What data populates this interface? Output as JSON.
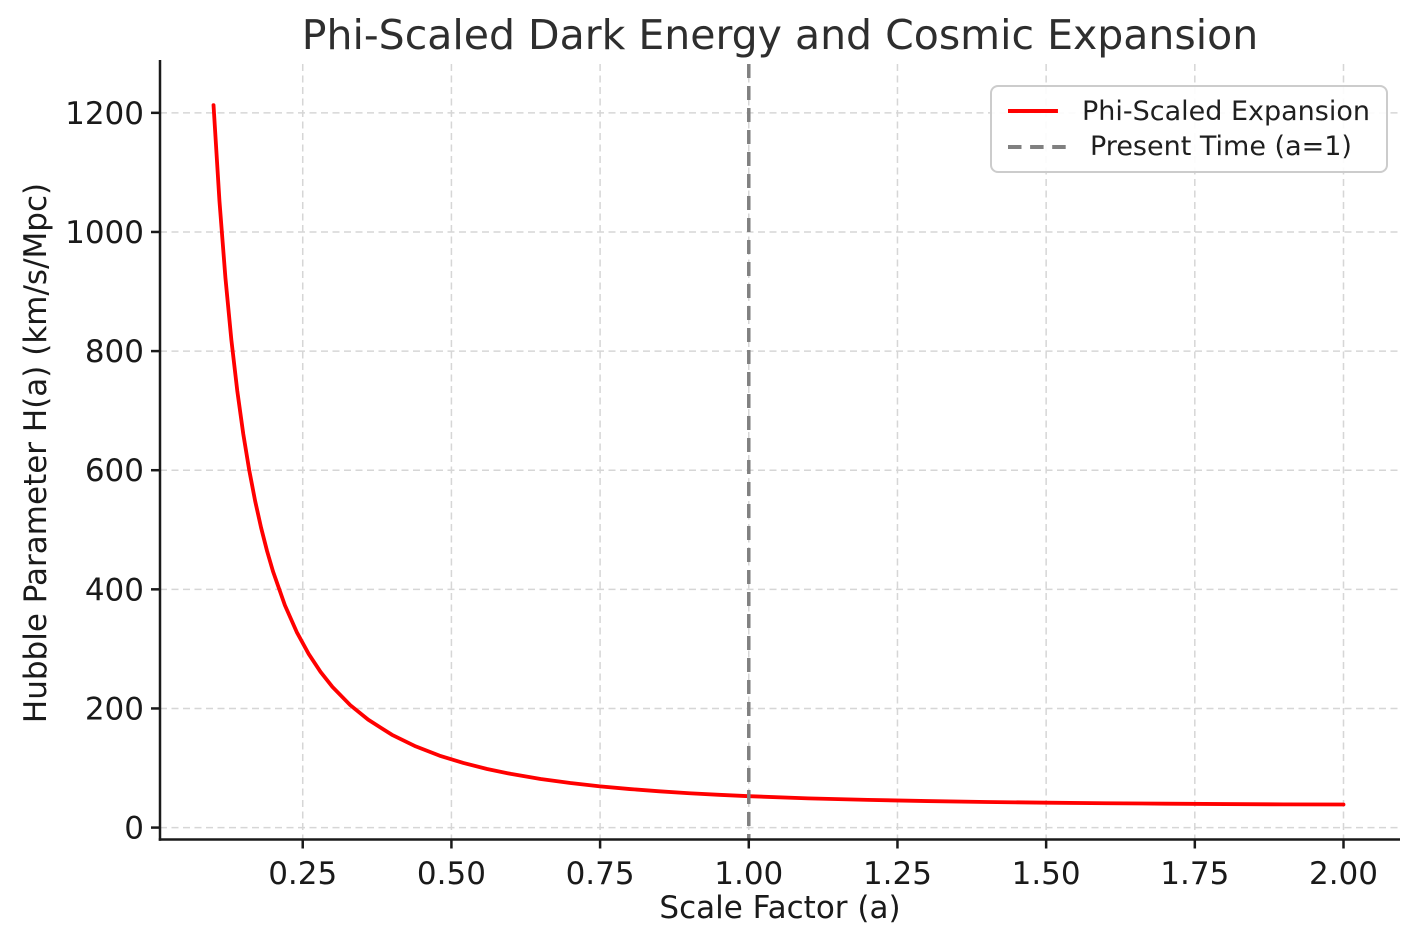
{
  "chart_data": {
    "type": "line",
    "title": "Phi-Scaled Dark Energy and Cosmic Expansion",
    "xlabel": "Scale Factor (a)",
    "ylabel": "Hubble Parameter H(a) (km/s/Mpc)",
    "xlim": [
      0.01,
      2.095
    ],
    "ylim": [
      -20,
      1282
    ],
    "xtick_values": [
      0.25,
      0.5,
      0.75,
      1.0,
      1.25,
      1.5,
      1.75,
      2.0
    ],
    "xtick_labels": [
      "0.25",
      "0.50",
      "0.75",
      "1.00",
      "1.25",
      "1.50",
      "1.75",
      "2.00"
    ],
    "ytick_values": [
      0,
      200,
      400,
      600,
      800,
      1000,
      1200
    ],
    "ytick_labels": [
      "0",
      "200",
      "400",
      "600",
      "800",
      "1000",
      "1200"
    ],
    "grid": true,
    "grid_style": "dashed",
    "legend_position": "upper right",
    "series": [
      {
        "name": "Phi-Scaled Expansion",
        "type": "line",
        "color": "#ff0000",
        "linestyle": "solid",
        "x": [
          0.1,
          0.11,
          0.12,
          0.13,
          0.14,
          0.15,
          0.16,
          0.17,
          0.18,
          0.19,
          0.2,
          0.22,
          0.24,
          0.26,
          0.28,
          0.3,
          0.33,
          0.36,
          0.4,
          0.44,
          0.48,
          0.52,
          0.56,
          0.6,
          0.65,
          0.7,
          0.75,
          0.8,
          0.85,
          0.9,
          0.95,
          1.0,
          1.1,
          1.2,
          1.3,
          1.4,
          1.5,
          1.6,
          1.7,
          1.8,
          1.9,
          2.0
        ],
        "y": [
          1213.0,
          1051.5,
          923.0,
          818.8,
          732.8,
          660.9,
          600.2,
          548.2,
          503.4,
          464.4,
          430.2,
          373.3,
          328.1,
          291.5,
          261.3,
          236.1,
          205.5,
          181.2,
          155.8,
          136.3,
          120.8,
          108.5,
          98.4,
          90.1,
          81.6,
          74.8,
          69.2,
          64.7,
          60.9,
          57.7,
          55.0,
          52.7,
          49.1,
          46.5,
          44.5,
          43.0,
          41.8,
          40.9,
          40.1,
          39.5,
          39.0,
          38.7
        ]
      },
      {
        "name": "Present Time (a=1)",
        "type": "vline",
        "color": "#808080",
        "linestyle": "dashed",
        "x": 1.0
      }
    ]
  },
  "colors": {
    "curve": "#ff0000",
    "vline": "#808080",
    "grid": "#d6d6d6",
    "spine": "#1a1a1a",
    "tick": "#1a1a1a",
    "text": "#1a1a1a",
    "title": "#2e2e2e",
    "legend_border": "#cccccc"
  }
}
